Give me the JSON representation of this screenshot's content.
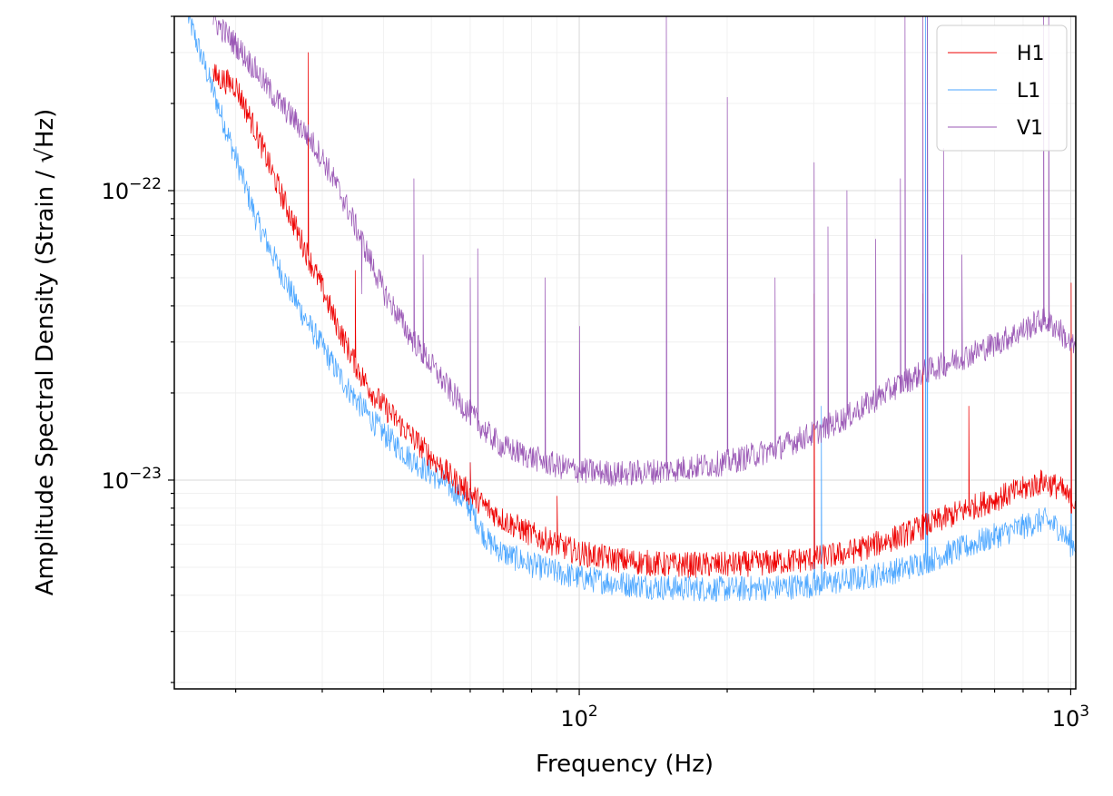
{
  "chart_data": {
    "type": "line",
    "xlabel": "Frequency (Hz)",
    "ylabel": "Amplitude Spectral Density (Strain / √Hz)",
    "xscale": "log",
    "yscale": "log",
    "xlim": [
      15,
      1024
    ],
    "ylim": [
      1.9e-24,
      4e-22
    ],
    "grid": true,
    "legend_position": "top-right",
    "x_tick_labels": [
      {
        "value": 100,
        "base": "10",
        "exp": "2"
      },
      {
        "value": 1000,
        "base": "10",
        "exp": "3"
      }
    ],
    "y_tick_labels": [
      {
        "value": 1e-23,
        "base": "10",
        "exp": "−23"
      },
      {
        "value": 1e-22,
        "base": "10",
        "exp": "−22"
      }
    ],
    "series": [
      {
        "name": "H1",
        "color": "#ee0000",
        "points": [
          [
            18,
            2.5e-22
          ],
          [
            20,
            2.3e-22
          ],
          [
            22,
            1.6e-22
          ],
          [
            24,
            1.1e-22
          ],
          [
            26,
            8e-23
          ],
          [
            28,
            6e-23
          ],
          [
            30,
            4.6e-23
          ],
          [
            32,
            3.5e-23
          ],
          [
            34,
            2.8e-23
          ],
          [
            36,
            2.3e-23
          ],
          [
            38,
            2e-23
          ],
          [
            40,
            1.8e-23
          ],
          [
            45,
            1.45e-23
          ],
          [
            50,
            1.2e-23
          ],
          [
            55,
            1.02e-23
          ],
          [
            60,
            9e-24
          ],
          [
            65,
            8e-24
          ],
          [
            70,
            7.3e-24
          ],
          [
            80,
            6.5e-24
          ],
          [
            90,
            6e-24
          ],
          [
            100,
            5.6e-24
          ],
          [
            120,
            5.3e-24
          ],
          [
            150,
            5.1e-24
          ],
          [
            200,
            5.1e-24
          ],
          [
            250,
            5.2e-24
          ],
          [
            300,
            5.35e-24
          ],
          [
            350,
            5.6e-24
          ],
          [
            400,
            6e-24
          ],
          [
            450,
            6.4e-24
          ],
          [
            500,
            6.9e-24
          ],
          [
            600,
            7.8e-24
          ],
          [
            700,
            8.6e-24
          ],
          [
            800,
            9.3e-24
          ],
          [
            880,
            9.9e-24
          ],
          [
            950,
            9.4e-24
          ],
          [
            1000,
            8.5e-24
          ]
        ],
        "peaks": [
          [
            28,
            3e-22
          ],
          [
            35,
            5.3e-23
          ],
          [
            60,
            1.15e-23
          ],
          [
            90,
            8.8e-24
          ],
          [
            300,
            4.4e-23
          ],
          [
            500,
            4.4e-23
          ],
          [
            620,
            1.8e-23
          ],
          [
            1000,
            4.8e-23
          ]
        ]
      },
      {
        "name": "L1",
        "color": "#4ba6ff",
        "points": [
          [
            16,
            4e-22
          ],
          [
            18,
            2.2e-22
          ],
          [
            20,
            1.3e-22
          ],
          [
            22,
            8e-23
          ],
          [
            24,
            5.8e-23
          ],
          [
            26,
            4.4e-23
          ],
          [
            28,
            3.5e-23
          ],
          [
            30,
            2.9e-23
          ],
          [
            32,
            2.4e-23
          ],
          [
            34,
            2.05e-23
          ],
          [
            36,
            1.8e-23
          ],
          [
            38,
            1.6e-23
          ],
          [
            40,
            1.45e-23
          ],
          [
            45,
            1.2e-23
          ],
          [
            50,
            1.05e-23
          ],
          [
            55,
            9.4e-24
          ],
          [
            60,
            8e-24
          ],
          [
            65,
            6.2e-24
          ],
          [
            70,
            5.6e-24
          ],
          [
            80,
            5.1e-24
          ],
          [
            90,
            4.8e-24
          ],
          [
            100,
            4.6e-24
          ],
          [
            120,
            4.4e-24
          ],
          [
            150,
            4.25e-24
          ],
          [
            200,
            4.2e-24
          ],
          [
            250,
            4.25e-24
          ],
          [
            300,
            4.35e-24
          ],
          [
            350,
            4.5e-24
          ],
          [
            400,
            4.7e-24
          ],
          [
            450,
            4.9e-24
          ],
          [
            500,
            5.2e-24
          ],
          [
            600,
            5.8e-24
          ],
          [
            700,
            6.4e-24
          ],
          [
            800,
            6.9e-24
          ],
          [
            880,
            7.3e-24
          ],
          [
            950,
            6.8e-24
          ],
          [
            1000,
            6e-24
          ]
        ],
        "peaks": [
          [
            60,
            1.15e-23
          ],
          [
            300,
            1.6e-23
          ],
          [
            310,
            1.8e-23
          ],
          [
            505,
            4e-22
          ],
          [
            510,
            4e-22
          ],
          [
            1000,
            1.5e-23
          ]
        ]
      },
      {
        "name": "V1",
        "color": "#9b59b6",
        "points": [
          [
            18,
            3.9e-22
          ],
          [
            20,
            3.2e-22
          ],
          [
            22,
            2.6e-22
          ],
          [
            24,
            2.1e-22
          ],
          [
            26,
            1.8e-22
          ],
          [
            28,
            1.55e-22
          ],
          [
            30,
            1.3e-22
          ],
          [
            32,
            1.05e-22
          ],
          [
            34,
            8.5e-23
          ],
          [
            36,
            6.8e-23
          ],
          [
            38,
            5.5e-23
          ],
          [
            40,
            4.5e-23
          ],
          [
            45,
            3.2e-23
          ],
          [
            50,
            2.5e-23
          ],
          [
            55,
            2e-23
          ],
          [
            60,
            1.7e-23
          ],
          [
            65,
            1.45e-23
          ],
          [
            70,
            1.3e-23
          ],
          [
            80,
            1.2e-23
          ],
          [
            90,
            1.12e-23
          ],
          [
            100,
            1.08e-23
          ],
          [
            120,
            1.05e-23
          ],
          [
            150,
            1.08e-23
          ],
          [
            200,
            1.15e-23
          ],
          [
            250,
            1.28e-23
          ],
          [
            300,
            1.45e-23
          ],
          [
            350,
            1.65e-23
          ],
          [
            400,
            1.9e-23
          ],
          [
            450,
            2.15e-23
          ],
          [
            500,
            2.35e-23
          ],
          [
            600,
            2.65e-23
          ],
          [
            700,
            2.95e-23
          ],
          [
            800,
            3.3e-23
          ],
          [
            880,
            3.6e-23
          ],
          [
            950,
            3.3e-23
          ],
          [
            1000,
            2.9e-23
          ]
        ],
        "peaks": [
          [
            36,
            4.4e-23
          ],
          [
            46,
            1.1e-22
          ],
          [
            48,
            6e-23
          ],
          [
            60,
            5e-23
          ],
          [
            62,
            6.3e-23
          ],
          [
            85,
            5e-23
          ],
          [
            100,
            3.4e-23
          ],
          [
            150,
            4e-22
          ],
          [
            200,
            2.1e-22
          ],
          [
            250,
            5e-23
          ],
          [
            300,
            1.25e-22
          ],
          [
            320,
            7.5e-23
          ],
          [
            350,
            1e-22
          ],
          [
            400,
            6.8e-23
          ],
          [
            450,
            1.1e-22
          ],
          [
            460,
            4e-22
          ],
          [
            500,
            4e-22
          ],
          [
            510,
            4e-22
          ],
          [
            550,
            1.4e-22
          ],
          [
            600,
            6e-23
          ],
          [
            880,
            4e-22
          ],
          [
            900,
            4e-22
          ]
        ]
      }
    ]
  }
}
